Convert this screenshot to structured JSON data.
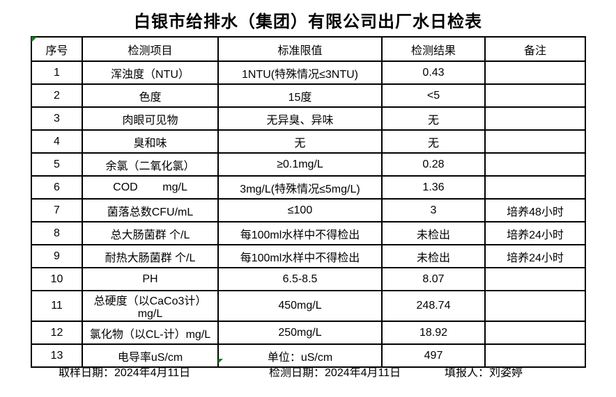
{
  "title": "白银市给排水（集团）有限公司出厂水日检表",
  "table": {
    "headers": [
      "序号",
      "检测项目",
      "标准限值",
      "检测结果",
      "备注"
    ],
    "rows": [
      {
        "no": "1",
        "item": "浑浊度（NTU）",
        "limit": "1NTU(特殊情况≤3NTU)",
        "result": "0.43",
        "remark": ""
      },
      {
        "no": "2",
        "item": "色度",
        "limit": "15度",
        "result": "<5",
        "remark": ""
      },
      {
        "no": "3",
        "item": "肉眼可见物",
        "limit": "无异臭、异味",
        "result": "无",
        "remark": ""
      },
      {
        "no": "4",
        "item": "臭和味",
        "limit": "无",
        "result": "无",
        "remark": ""
      },
      {
        "no": "5",
        "item": "余氯（二氧化氯）",
        "limit": "≥0.1mg/L",
        "result": "0.28",
        "remark": ""
      },
      {
        "no": "6",
        "item": "COD        mg/L",
        "limit": "3mg/L(特殊情况≤5mg/L)",
        "result": "1.36",
        "remark": ""
      },
      {
        "no": "7",
        "item": "菌落总数CFU/mL",
        "limit": "≤100",
        "result": "3",
        "remark": "培养48小时"
      },
      {
        "no": "8",
        "item": "总大肠菌群 个/L",
        "limit": "每100ml水样中不得检出",
        "result": "未检出",
        "remark": "培养24小时"
      },
      {
        "no": "9",
        "item": "耐热大肠菌群 个/L",
        "limit": "每100ml水样中不得检出",
        "result": "未检出",
        "remark": "培养24小时"
      },
      {
        "no": "10",
        "item": "PH",
        "limit": "6.5-8.5",
        "result": "8.07",
        "remark": ""
      },
      {
        "no": "11",
        "item": "总硬度（以CaCo3计）mg/L",
        "limit": "450mg/L",
        "result": "248.74",
        "remark": ""
      },
      {
        "no": "12",
        "item": "氯化物（以CL-计）mg/L",
        "limit": "250mg/L",
        "result": "18.92",
        "remark": ""
      },
      {
        "no": "13",
        "item": "电导率uS/cm",
        "limit": "单位：uS/cm",
        "result": "497",
        "remark": ""
      }
    ]
  },
  "footer": {
    "sampling_label": "取样日期：",
    "sampling_value": "2024年4月11日",
    "testing_label": "检测日期：",
    "testing_value": "2024年4月11日",
    "reporter_label": "填报人：",
    "reporter_value": "刘姿婷"
  },
  "icons": {
    "top_left_marker": "green-triangle",
    "bottom_marker": "green-triangle"
  },
  "colors": {
    "marker_green": "#1b7a1b",
    "border": "#000000",
    "background": "#ffffff"
  }
}
